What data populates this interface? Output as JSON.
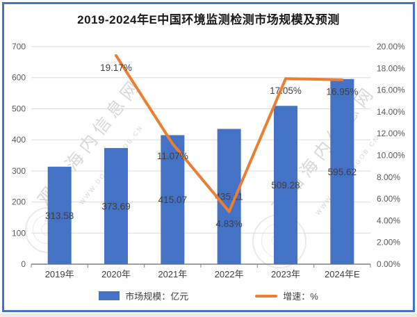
{
  "title": "2019-2024年E中国环境监测检测市场规模及预测",
  "legend": {
    "bar_label": "市场规模：亿元",
    "line_label": "增速：%"
  },
  "watermark": {
    "text": "观知海内信息网",
    "subtext": "WWW.DONGANGOB.CN"
  },
  "colors": {
    "bar": "#4472C4",
    "line": "#ED7D31",
    "border": "#4472C4",
    "grid": "#D9D9D9",
    "axis_line": "#7F7F7F",
    "axis_text": "#595959",
    "data_label": "#3F3F3F"
  },
  "chart_data": {
    "type": "bar",
    "subtype": "combo-bar-line",
    "title": "2019-2024年E中国环境监测检测市场规模及预测",
    "categories": [
      "2019年",
      "2020年",
      "2021年",
      "2022年",
      "2023年",
      "2024年E"
    ],
    "series": [
      {
        "name": "市场规模：亿元",
        "type": "bar",
        "axis": "left",
        "values": [
          313.58,
          373.69,
          415.07,
          435.11,
          509.28,
          595.62
        ],
        "labels": [
          "313.58",
          "373.69",
          "415.07",
          "435.11",
          "509.28",
          "595.62"
        ]
      },
      {
        "name": "增速：%",
        "type": "line",
        "axis": "right",
        "values": [
          null,
          19.17,
          11.07,
          4.83,
          17.05,
          16.95
        ],
        "labels": [
          null,
          "19.17%",
          "11.07%",
          "4.83%",
          "17.05%",
          "16.95%"
        ]
      }
    ],
    "left_axis": {
      "min": 0,
      "max": 700,
      "step": 100,
      "tick_labels": [
        "0",
        "100",
        "200",
        "300",
        "400",
        "500",
        "600",
        "700"
      ]
    },
    "right_axis": {
      "min": 0,
      "max": 20,
      "step": 2,
      "tick_labels": [
        "0.00%",
        "2.00%",
        "4.00%",
        "6.00%",
        "8.00%",
        "10.00%",
        "12.00%",
        "14.00%",
        "16.00%",
        "18.00%",
        "20.00%"
      ]
    },
    "grid": true,
    "legend_position": "bottom"
  }
}
